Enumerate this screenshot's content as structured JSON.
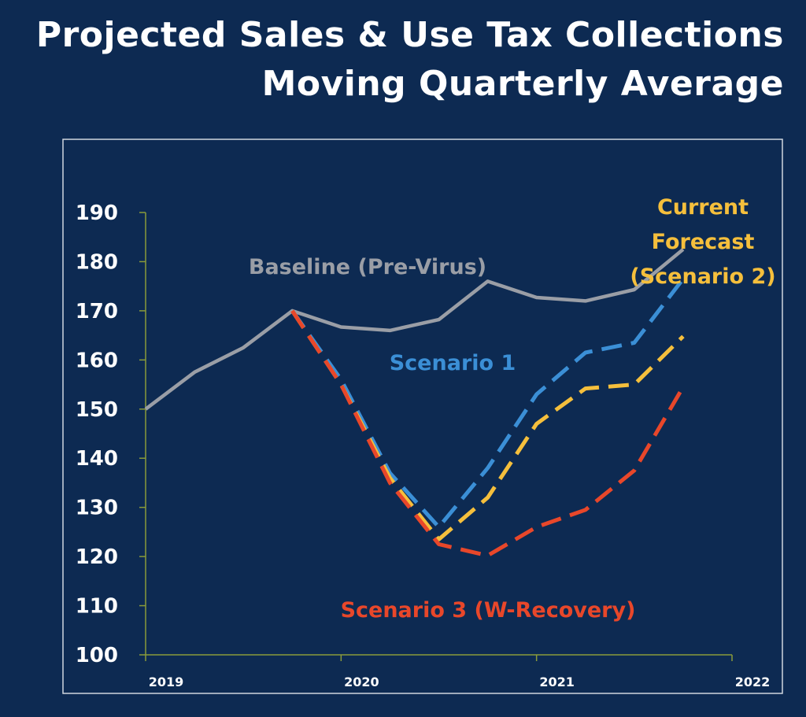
{
  "title_line1": "Projected Sales & Use Tax Collections",
  "title_line2": "Moving Quarterly Average",
  "chart_data": {
    "type": "line",
    "x_ticks": [
      "2019",
      "2020",
      "2021",
      "2022"
    ],
    "y_ticks": [
      100,
      110,
      120,
      130,
      140,
      150,
      160,
      170,
      180,
      190
    ],
    "ylim": [
      100,
      190
    ],
    "xlim": [
      2019,
      2022
    ],
    "grid": false,
    "series": [
      {
        "name": "Baseline (Pre-Virus)",
        "color": "#9a9ea6",
        "dashed": false,
        "points": [
          [
            2019.0,
            150
          ],
          [
            2019.25,
            157.5
          ],
          [
            2019.5,
            162.5
          ],
          [
            2019.75,
            170
          ],
          [
            2020.0,
            166.7
          ],
          [
            2020.25,
            166
          ],
          [
            2020.5,
            168.2
          ],
          [
            2020.75,
            176
          ],
          [
            2021.0,
            172.7
          ],
          [
            2021.25,
            172
          ],
          [
            2021.5,
            174.3
          ],
          [
            2021.75,
            182.5
          ]
        ]
      },
      {
        "name": "Scenario 1",
        "color": "#3b8fd6",
        "dashed": true,
        "points": [
          [
            2019.75,
            170
          ],
          [
            2020.0,
            156
          ],
          [
            2020.25,
            137
          ],
          [
            2020.5,
            126
          ],
          [
            2020.75,
            138
          ],
          [
            2021.0,
            153
          ],
          [
            2021.25,
            161.5
          ],
          [
            2021.5,
            163.5
          ],
          [
            2021.75,
            176.5
          ]
        ]
      },
      {
        "name": "Current Forecast (Scenario 2)",
        "color": "#f5bf3c",
        "dashed": true,
        "points": [
          [
            2019.75,
            170
          ],
          [
            2020.0,
            155
          ],
          [
            2020.25,
            136
          ],
          [
            2020.5,
            123.5
          ],
          [
            2020.75,
            132
          ],
          [
            2021.0,
            147
          ],
          [
            2021.25,
            154.2
          ],
          [
            2021.5,
            155
          ],
          [
            2021.75,
            164.8
          ]
        ]
      },
      {
        "name": "Scenario 3 (W-Recovery)",
        "color": "#e8472a",
        "dashed": true,
        "points": [
          [
            2019.75,
            170
          ],
          [
            2020.0,
            155
          ],
          [
            2020.25,
            135
          ],
          [
            2020.5,
            122.5
          ],
          [
            2020.75,
            120.2
          ],
          [
            2021.0,
            126
          ],
          [
            2021.25,
            129.5
          ],
          [
            2021.5,
            137.5
          ],
          [
            2021.75,
            154.5
          ]
        ]
      }
    ],
    "annotations": [
      {
        "id": "baseline",
        "lines": [
          "Baseline (Pre-Virus)"
        ],
        "color": "#9a9ea6"
      },
      {
        "id": "scenario1",
        "lines": [
          "Scenario 1"
        ],
        "color": "#3b8fd6"
      },
      {
        "id": "scenario2",
        "lines": [
          "Current",
          "Forecast",
          "(Scenario 2)"
        ],
        "color": "#f5bf3c"
      },
      {
        "id": "scenario3",
        "lines": [
          "Scenario 3 (W-Recovery)"
        ],
        "color": "#e8472a"
      }
    ]
  }
}
